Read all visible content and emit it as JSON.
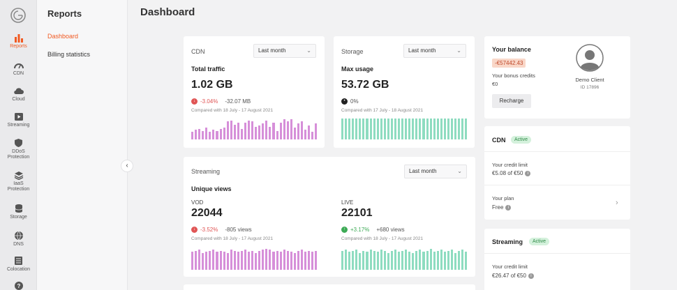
{
  "rail": {
    "items": [
      {
        "label": "Reports",
        "icon": "bar-chart-icon"
      },
      {
        "label": "CDN",
        "icon": "speedometer-icon"
      },
      {
        "label": "Cloud",
        "icon": "cloud-icon"
      },
      {
        "label": "Streaming",
        "icon": "play-icon"
      },
      {
        "label": "DDoS\nProtection",
        "line1": "DDoS",
        "line2": "Protection",
        "icon": "shield-icon"
      },
      {
        "label": "IaaS\nProtection",
        "line1": "IaaS",
        "line2": "Protection",
        "icon": "stack-icon"
      },
      {
        "label": "Storage",
        "icon": "database-icon"
      },
      {
        "label": "DNS",
        "icon": "globe-icon"
      },
      {
        "label": "Colocation",
        "icon": "server-icon"
      }
    ]
  },
  "subnav": {
    "title": "Reports",
    "links": [
      "Dashboard",
      "Billing statistics"
    ]
  },
  "page": {
    "title": "Dashboard"
  },
  "cdn_card": {
    "head": "CDN",
    "period": "Last month",
    "metric": "Total traffic",
    "value": "1.02 GB",
    "delta_pct": "-3.04%",
    "delta_abs": "-32.07 MB",
    "compare": "Compared with 18 July - 17 August 2021",
    "bars": [
      0.35,
      0.45,
      0.5,
      0.4,
      0.55,
      0.35,
      0.45,
      0.4,
      0.5,
      0.55,
      0.85,
      0.9,
      0.7,
      0.8,
      0.5,
      0.8,
      0.9,
      0.85,
      0.6,
      0.65,
      0.75,
      0.9,
      0.6,
      0.8,
      0.4,
      0.8,
      0.95,
      0.85,
      0.95,
      0.55,
      0.75,
      0.85,
      0.45,
      0.65,
      0.35,
      0.75
    ]
  },
  "storage_card": {
    "head": "Storage",
    "period": "Last month",
    "metric": "Max usage",
    "value": "53.72 GB",
    "delta_pct": "0%",
    "compare": "Compared with 17 July - 18 August 2021",
    "bars": [
      1,
      1,
      1,
      1,
      1,
      1,
      1,
      1,
      1,
      1,
      1,
      1,
      1,
      1,
      1,
      1,
      1,
      1,
      1,
      1,
      1,
      1,
      1,
      1,
      1,
      1,
      1,
      1,
      1,
      1,
      1,
      1,
      1,
      1,
      1,
      1
    ]
  },
  "streaming_card": {
    "head": "Streaming",
    "period": "Last month",
    "metric": "Unique views",
    "vod": {
      "label": "VOD",
      "value": "22044",
      "delta_pct": "-3.52%",
      "delta_abs": "-805 views",
      "compare": "Compared with 18 July - 17 August 2021",
      "bars": [
        0.8,
        0.85,
        0.9,
        0.75,
        0.8,
        0.85,
        0.9,
        0.8,
        0.85,
        0.8,
        0.75,
        0.9,
        0.85,
        0.8,
        0.85,
        0.9,
        0.8,
        0.85,
        0.75,
        0.85,
        0.9,
        0.95,
        0.9,
        0.8,
        0.85,
        0.8,
        0.9,
        0.85,
        0.8,
        0.75,
        0.85,
        0.9,
        0.8,
        0.85,
        0.8,
        0.85
      ]
    },
    "live": {
      "label": "LIVE",
      "value": "22101",
      "delta_pct": "+3.17%",
      "delta_abs": "+680 views",
      "compare": "Compared with 18 July - 17 August 2021",
      "bars": [
        0.85,
        0.9,
        0.8,
        0.85,
        0.9,
        0.75,
        0.85,
        0.8,
        0.9,
        0.85,
        0.8,
        0.9,
        0.85,
        0.75,
        0.85,
        0.9,
        0.8,
        0.85,
        0.9,
        0.8,
        0.75,
        0.85,
        0.9,
        0.8,
        0.85,
        0.95,
        0.8,
        0.85,
        0.9,
        0.8,
        0.85,
        0.9,
        0.75,
        0.85,
        0.9,
        0.8
      ]
    }
  },
  "balance_card": {
    "title": "Your balance",
    "balance": "-€57442.43",
    "bonus_label": "Your bonus credits",
    "bonus_value": "€0",
    "recharge": "Recharge",
    "client_name": "Demo Client",
    "client_id": "ID 17896"
  },
  "cdn_plan_card": {
    "title": "CDN",
    "status": "Active",
    "credit_label": "Your credit limit",
    "credit_value": "€5.08 of €50",
    "plan_label": "Your plan",
    "plan_value": "Free"
  },
  "streaming_plan_card": {
    "title": "Streaming",
    "status": "Active",
    "credit_label": "Your credit limit",
    "credit_value": "€26.47 of €50"
  },
  "colors": {
    "accent": "#f15a22",
    "pink_bar": "#d68fd9",
    "green_bar": "#8edcc0",
    "negative": "#e05555",
    "positive": "#3caa55"
  }
}
